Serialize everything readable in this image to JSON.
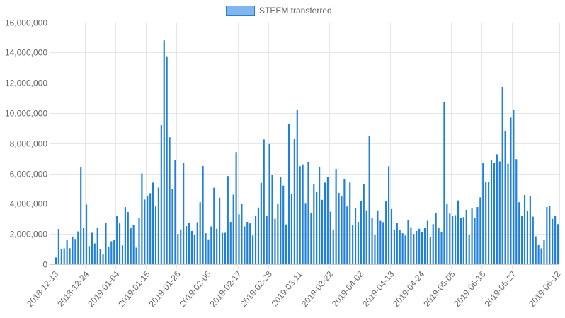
{
  "chart_data": {
    "type": "bar",
    "legend": {
      "position": "top-center"
    },
    "grid": true,
    "ylim": [
      0,
      16000000
    ],
    "y_ticks": [
      "16,000,000",
      "14,000,000",
      "12,000,000",
      "10,000,000",
      "8,000,000",
      "6,000,000",
      "4,000,000",
      "2,000,000",
      "0"
    ],
    "x_ticks": [
      "2018-12-13",
      "2018-12-24",
      "2019-01-04",
      "2019-01-15",
      "2019-01-26",
      "2019-02-06",
      "2019-02-17",
      "2019-02-28",
      "2019-03-11",
      "2019-03-22",
      "2019-04-02",
      "2019-04-13",
      "2019-04-24",
      "2019-05-05",
      "2019-05-16",
      "2019-05-27",
      "2019-06-12"
    ],
    "x_start": "2018-12-13",
    "x_end": "2019-06-12",
    "colors": {
      "bar": "#1e7fdc",
      "legend_fill": "#7fb8f0",
      "legend_border": "#2a7fd4",
      "grid": "#e6e6e6",
      "axis": "#cccccc"
    },
    "series": [
      {
        "name": "STEEM transferred",
        "values": [
          450000,
          2330000,
          1000000,
          1050000,
          1620000,
          1060000,
          1830000,
          1670000,
          2170000,
          6420000,
          2410000,
          3950000,
          1200000,
          2080000,
          1380000,
          2420000,
          1020000,
          650000,
          2750000,
          1150000,
          1520000,
          1600000,
          3180000,
          2700000,
          1250000,
          3780000,
          3450000,
          2380000,
          2600000,
          1100000,
          3050000,
          6000000,
          4280000,
          4520000,
          4700000,
          5400000,
          3820000,
          5070000,
          9200000,
          14800000,
          13750000,
          8400000,
          5000000,
          6900000,
          2000000,
          2300000,
          6700000,
          2520000,
          2730000,
          2200000,
          1950000,
          2780000,
          4100000,
          6500000,
          2050000,
          1650000,
          2500000,
          5060000,
          2350000,
          4400000,
          2070000,
          2080000,
          5830000,
          2800000,
          4600000,
          7420000,
          3300000,
          4000000,
          2500000,
          2800000,
          2700000,
          1900000,
          3230000,
          3750000,
          5380000,
          8250000,
          3200000,
          7950000,
          5900000,
          3000000,
          4000000,
          5780000,
          5200000,
          2630000,
          9250000,
          4650000,
          8280000,
          10200000,
          6480000,
          6600000,
          4050000,
          6780000,
          3380000,
          5300000,
          4820000,
          6450000,
          4260000,
          5400000,
          5750000,
          3480000,
          2300000,
          6300000,
          4720000,
          4480000,
          5650000,
          3820000,
          5400000,
          2580000,
          3700000,
          2800000,
          4180000,
          5280000,
          3560000,
          8500000,
          3060000,
          1950000,
          3560000,
          2870000,
          2790000,
          4180000,
          6480000,
          3650000,
          2300000,
          2750000,
          2280000,
          2050000,
          1900000,
          2940000,
          2450000,
          2000000,
          2200000,
          2350000,
          2120000,
          2420000,
          2870000,
          1780000,
          2650000,
          3380000,
          2380000,
          2150000,
          10750000,
          4000000,
          3350000,
          3200000,
          3250000,
          4220000,
          3050000,
          3120000,
          3600000,
          1950000,
          3680000,
          3060000,
          3780000,
          4420000,
          6700000,
          5450000,
          5420000,
          6900000,
          6700000,
          7270000,
          6800000,
          11730000,
          8820000,
          6650000,
          9700000,
          10200000,
          6950000,
          4100000,
          3180000,
          4580000,
          3550000,
          4500000,
          3150000,
          1850000,
          1300000,
          1050000,
          1600000,
          3780000,
          3880000,
          3000000,
          3200000,
          2650000
        ]
      }
    ]
  }
}
